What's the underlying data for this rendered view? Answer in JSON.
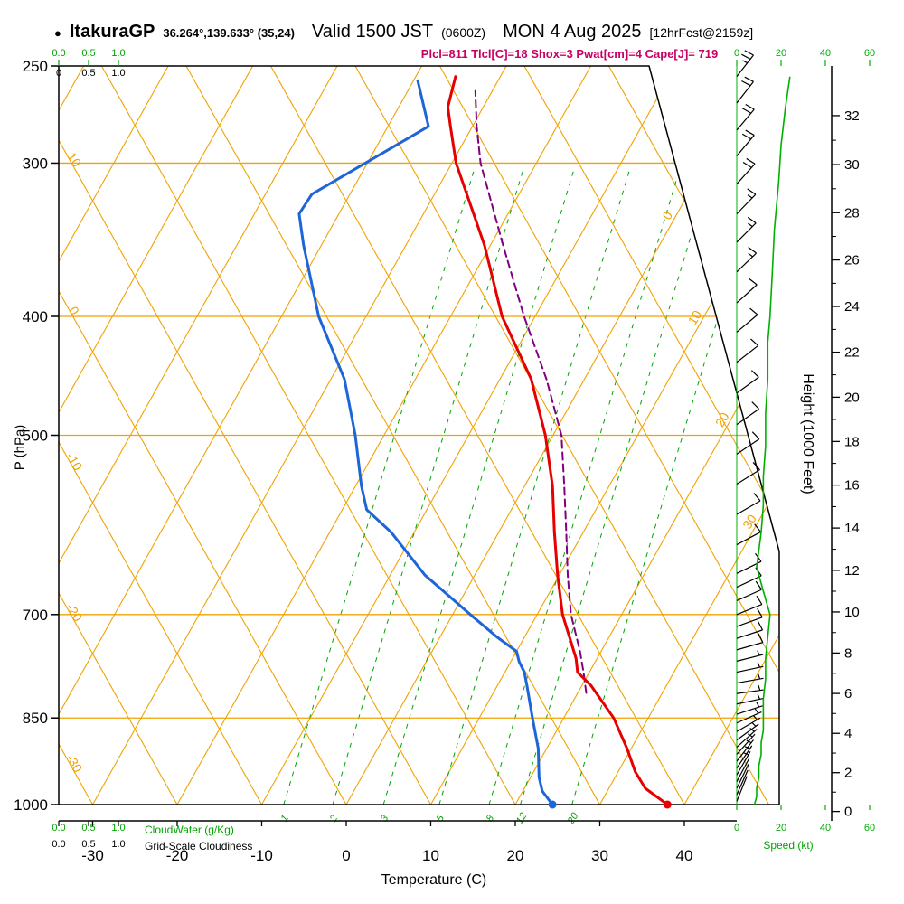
{
  "header": {
    "bullet": "●",
    "station": "ItakuraGP",
    "coords": "36.264°,139.633° (35,24)",
    "valid": "Valid 1500 JST",
    "valid_z": "(0600Z)",
    "date": "MON 4 Aug 2025",
    "fcst": "[12hrFcst@2159z]",
    "params": "Plcl=811 Tlcl[C]=18 Shox=3 Pwat[cm]=4 Cape[J]= 719"
  },
  "axis_titles": {
    "pressure": "P (hPa)",
    "temperature": "Temperature (C)",
    "height": "Height (1000 Feet)",
    "speed": "Speed (kt)",
    "cloudwater": "CloudWater (g/Kg)",
    "cloudiness": "Grid-Scale Cloudiness"
  },
  "chart_data": {
    "type": "skewt_log_p_sounding",
    "pressure_ticks_hPa": [
      250,
      300,
      400,
      500,
      700,
      850,
      1000
    ],
    "temperature_ticks_C": [
      -30,
      -20,
      -10,
      0,
      10,
      20,
      30,
      40
    ],
    "height_ticks_kft": [
      0,
      2,
      4,
      6,
      8,
      10,
      12,
      14,
      16,
      18,
      20,
      22,
      24,
      26,
      28,
      30,
      32
    ],
    "speed_ticks_kt": [
      0,
      20,
      40,
      60
    ],
    "cloud_scale": [
      "0.0",
      "0.5",
      "1.0"
    ],
    "cloud_scale_top_black": [
      "0",
      "0.5",
      "1.0"
    ],
    "isotherm_labels_right_C": [
      0,
      10,
      20,
      30
    ],
    "adiabat_labels_left_C": [
      10,
      0,
      -10,
      -20,
      -30
    ],
    "mixing_ratio_g_kg": [
      1,
      2,
      3,
      5,
      8,
      12,
      20
    ],
    "mixing_ratio_t1000_C": [
      -7.4,
      -1.6,
      4.4,
      11.0,
      16.9,
      20.6,
      26.7
    ],
    "temperature_profile": {
      "name": "temperature",
      "color": "#e60000",
      "points_p_T": [
        [
          1000,
          38.0
        ],
        [
          970,
          34.3
        ],
        [
          940,
          32.0
        ],
        [
          900,
          29.5
        ],
        [
          850,
          25.9
        ],
        [
          800,
          21.1
        ],
        [
          780,
          18.6
        ],
        [
          760,
          17.5
        ],
        [
          700,
          13.0
        ],
        [
          650,
          9.8
        ],
        [
          600,
          6.6
        ],
        [
          550,
          3.3
        ],
        [
          500,
          -0.9
        ],
        [
          450,
          -6.3
        ],
        [
          400,
          -13.9
        ],
        [
          350,
          -20.7
        ],
        [
          300,
          -29.5
        ],
        [
          280,
          -32.6
        ],
        [
          270,
          -34.2
        ],
        [
          255,
          -35.3
        ]
      ]
    },
    "dewpoint_profile": {
      "name": "dewpoint",
      "color": "#1e66d8",
      "points_p_T": [
        [
          1000,
          24.4
        ],
        [
          975,
          22.3
        ],
        [
          950,
          21.0
        ],
        [
          900,
          19.0
        ],
        [
          850,
          16.3
        ],
        [
          800,
          13.5
        ],
        [
          780,
          12.3
        ],
        [
          765,
          11.0
        ],
        [
          750,
          10.0
        ],
        [
          730,
          6.7
        ],
        [
          700,
          2.1
        ],
        [
          650,
          -5.9
        ],
        [
          600,
          -12.7
        ],
        [
          575,
          -17.1
        ],
        [
          550,
          -19.3
        ],
        [
          500,
          -23.4
        ],
        [
          450,
          -28.4
        ],
        [
          400,
          -35.6
        ],
        [
          350,
          -42.1
        ],
        [
          330,
          -44.7
        ],
        [
          318,
          -44.5
        ],
        [
          280,
          -35.2
        ],
        [
          257,
          -39.5
        ]
      ]
    },
    "parcel_profile": {
      "name": "parcel",
      "color": "#800080",
      "points_p_T": [
        [
          811,
          21.0
        ],
        [
          780,
          19.3
        ],
        [
          750,
          17.5
        ],
        [
          700,
          14.0
        ],
        [
          650,
          11.0
        ],
        [
          600,
          8.0
        ],
        [
          550,
          4.7
        ],
        [
          500,
          1.0
        ],
        [
          450,
          -4.5
        ],
        [
          400,
          -11.3
        ],
        [
          350,
          -18.5
        ],
        [
          300,
          -26.6
        ],
        [
          280,
          -29.5
        ],
        [
          262,
          -32.0
        ]
      ]
    },
    "surface_markers": [
      {
        "series": "temperature",
        "p": 1000,
        "T": 38.0,
        "color": "#e60000"
      },
      {
        "series": "dewpoint",
        "p": 1000,
        "T": 24.4,
        "color": "#1e66d8"
      }
    ],
    "wind_barbs_p_kt_deg": [
      [
        255,
        25,
        52
      ],
      [
        268,
        22,
        52
      ],
      [
        282,
        20,
        50
      ],
      [
        296,
        20,
        50
      ],
      [
        312,
        18,
        48
      ],
      [
        330,
        15,
        46
      ],
      [
        348,
        15,
        45
      ],
      [
        368,
        15,
        44
      ],
      [
        390,
        12,
        42
      ],
      [
        412,
        12,
        40
      ],
      [
        436,
        12,
        38
      ],
      [
        462,
        10,
        36
      ],
      [
        490,
        10,
        35
      ],
      [
        518,
        10,
        34
      ],
      [
        548,
        10,
        32
      ],
      [
        580,
        8,
        30
      ],
      [
        614,
        8,
        28
      ],
      [
        648,
        8,
        26
      ],
      [
        665,
        8,
        25
      ],
      [
        682,
        10,
        24
      ],
      [
        700,
        10,
        22
      ],
      [
        716,
        8,
        20
      ],
      [
        732,
        8,
        18
      ],
      [
        748,
        8,
        16
      ],
      [
        764,
        7,
        14
      ],
      [
        780,
        7,
        12
      ],
      [
        796,
        6,
        10
      ],
      [
        812,
        6,
        8
      ],
      [
        828,
        6,
        12
      ],
      [
        844,
        5,
        18
      ],
      [
        858,
        5,
        24
      ],
      [
        872,
        5,
        30
      ],
      [
        886,
        4,
        36
      ],
      [
        898,
        4,
        42
      ],
      [
        910,
        4,
        48
      ],
      [
        922,
        3,
        52
      ],
      [
        934,
        3,
        56
      ],
      [
        946,
        3,
        60
      ],
      [
        958,
        2,
        62
      ],
      [
        970,
        2,
        64
      ],
      [
        982,
        2,
        66
      ],
      [
        994,
        2,
        68
      ]
    ],
    "speed_profile_p_kt": [
      [
        1000,
        8
      ],
      [
        985,
        9
      ],
      [
        970,
        9
      ],
      [
        950,
        10
      ],
      [
        930,
        10
      ],
      [
        910,
        11
      ],
      [
        890,
        11
      ],
      [
        870,
        12
      ],
      [
        850,
        12
      ],
      [
        820,
        12
      ],
      [
        790,
        13
      ],
      [
        760,
        13
      ],
      [
        730,
        14
      ],
      [
        700,
        15
      ],
      [
        670,
        12
      ],
      [
        640,
        9
      ],
      [
        620,
        10
      ],
      [
        600,
        11
      ],
      [
        570,
        12
      ],
      [
        540,
        12
      ],
      [
        510,
        13
      ],
      [
        480,
        13
      ],
      [
        450,
        14
      ],
      [
        420,
        14
      ],
      [
        400,
        15
      ],
      [
        370,
        16
      ],
      [
        340,
        17
      ],
      [
        310,
        19
      ],
      [
        290,
        20
      ],
      [
        270,
        22
      ],
      [
        255,
        24
      ]
    ],
    "colors": {
      "grid": "#f0a202",
      "moisture": "#00a400",
      "speed": "#00b000",
      "frame": "#000000",
      "parcel": "#800080",
      "temperature": "#e60000",
      "dewpoint": "#1e66d8"
    }
  }
}
